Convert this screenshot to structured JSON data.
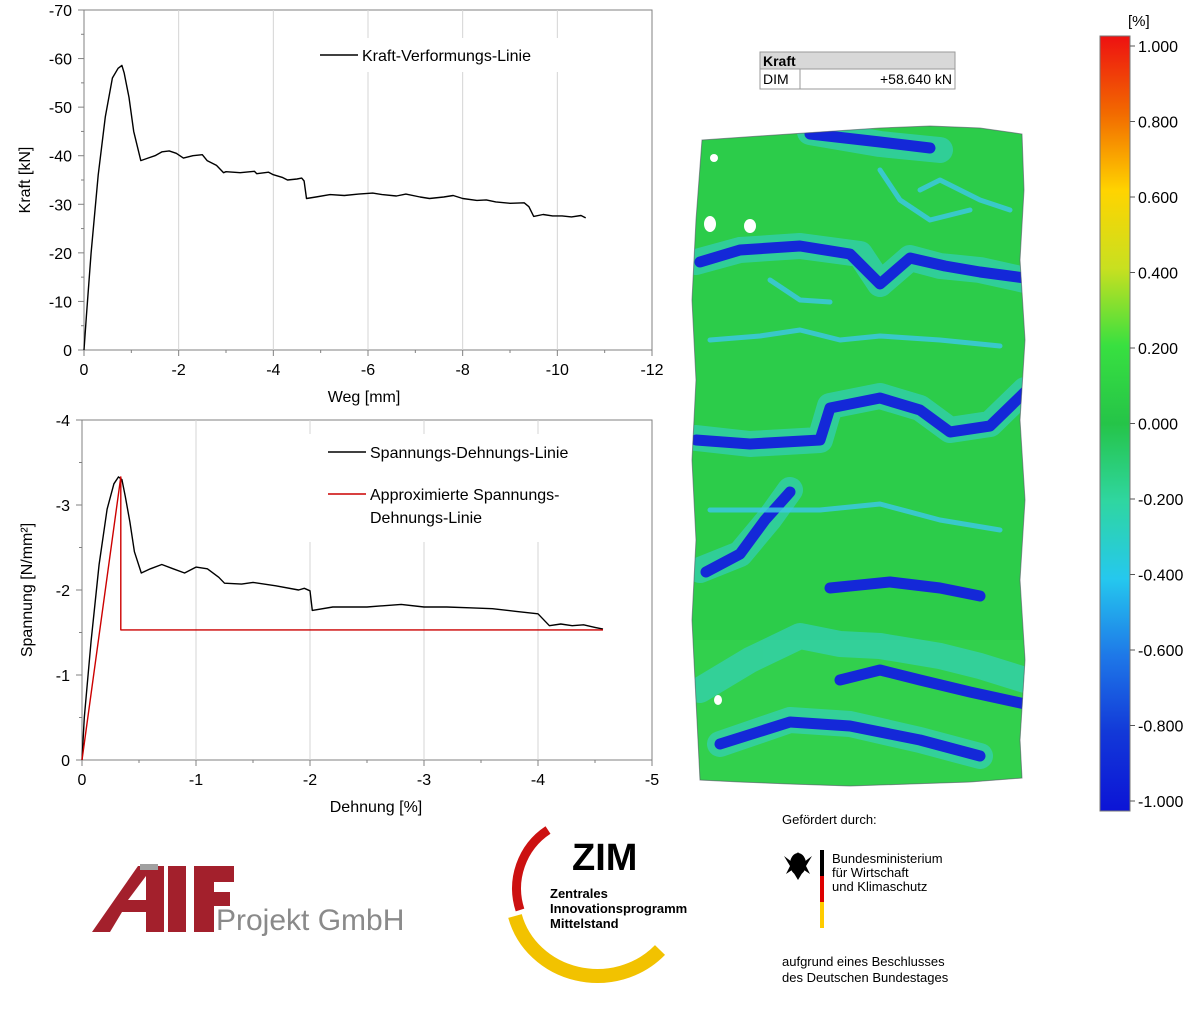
{
  "chart_data": [
    {
      "type": "line",
      "title": "",
      "xlabel": "Weg [mm]",
      "ylabel": "Kraft  [kN]",
      "xlim": [
        0,
        -12
      ],
      "ylim": [
        0,
        -70
      ],
      "xticks": [
        0,
        -2,
        -4,
        -6,
        -8,
        -10,
        -12
      ],
      "yticks": [
        0,
        -10,
        -20,
        -30,
        -40,
        -50,
        -60,
        -70
      ],
      "xtick_labels": [
        "0",
        "-2",
        "-4",
        "-6",
        "-8",
        "-10",
        "-12"
      ],
      "ytick_labels": [
        "0",
        "-10",
        "-20",
        "-30",
        "-40",
        "-50",
        "-60",
        "-70"
      ],
      "grid": "vertical major",
      "legend": "top-right",
      "series": [
        {
          "name": "Kraft-Verformungs-Linie",
          "color": "#000000",
          "x": [
            0,
            -0.05,
            -0.15,
            -0.3,
            -0.45,
            -0.6,
            -0.72,
            -0.8,
            -0.85,
            -0.95,
            -1.05,
            -1.2,
            -1.35,
            -1.5,
            -1.65,
            -1.8,
            -1.95,
            -2.1,
            -2.3,
            -2.5,
            -2.6,
            -2.8,
            -2.95,
            -3.0,
            -3.3,
            -3.6,
            -3.65,
            -3.9,
            -4.0,
            -4.2,
            -4.3,
            -4.5,
            -4.6,
            -4.65,
            -4.7,
            -4.9,
            -5.2,
            -5.5,
            -5.8,
            -6.1,
            -6.3,
            -6.6,
            -6.8,
            -7.1,
            -7.3,
            -7.6,
            -7.8,
            -8.0,
            -8.3,
            -8.5,
            -8.7,
            -9.0,
            -9.3,
            -9.4,
            -9.5,
            -9.7,
            -9.9,
            -10.1,
            -10.3,
            -10.5,
            -10.6
          ],
          "y": [
            0,
            -7,
            -20,
            -36,
            -48,
            -56,
            -58,
            -58.6,
            -57,
            -52,
            -45,
            -39,
            -39.5,
            -40,
            -40.8,
            -41,
            -40.5,
            -39.5,
            -40,
            -40.2,
            -39,
            -38,
            -36.5,
            -36.7,
            -36.5,
            -36.8,
            -36.3,
            -36.6,
            -36.1,
            -35.5,
            -35,
            -35.2,
            -35.4,
            -34.8,
            -31.2,
            -31.5,
            -32,
            -31.8,
            -32.1,
            -32.3,
            -32,
            -31.7,
            -32.1,
            -31.5,
            -31.2,
            -31.5,
            -31.8,
            -31.2,
            -30.8,
            -30.9,
            -30.5,
            -30.2,
            -30.3,
            -29.5,
            -27.5,
            -27.9,
            -27.6,
            -27.6,
            -27.4,
            -27.7,
            -27.2
          ]
        }
      ]
    },
    {
      "type": "line",
      "title": "",
      "xlabel": "Dehnung [%]",
      "ylabel": "Spannung  [N/mm²]",
      "xlim": [
        0,
        -5
      ],
      "ylim": [
        0,
        -4
      ],
      "xticks": [
        0,
        -1,
        -2,
        -3,
        -4,
        -5
      ],
      "yticks": [
        0,
        -1,
        -2,
        -3,
        -4
      ],
      "xtick_labels": [
        "0",
        "-1",
        "-2",
        "-3",
        "-4",
        "-5"
      ],
      "ytick_labels": [
        "0",
        "-1",
        "-2",
        "-3",
        "-4"
      ],
      "grid": "vertical major",
      "legend": "top-right",
      "series": [
        {
          "name": "Spannungs-Dehnungs-Linie",
          "color": "#000000",
          "x": [
            0,
            -0.02,
            -0.08,
            -0.15,
            -0.22,
            -0.28,
            -0.32,
            -0.35,
            -0.38,
            -0.42,
            -0.46,
            -0.52,
            -0.6,
            -0.7,
            -0.8,
            -0.9,
            -1.0,
            -1.1,
            -1.2,
            -1.25,
            -1.4,
            -1.5,
            -1.7,
            -1.9,
            -1.95,
            -2.0,
            -2.02,
            -2.2,
            -2.5,
            -2.8,
            -3.0,
            -3.2,
            -3.4,
            -3.6,
            -3.8,
            -4.0,
            -4.1,
            -4.2,
            -4.3,
            -4.4,
            -4.5,
            -4.57
          ],
          "y": [
            0,
            -0.5,
            -1.4,
            -2.3,
            -2.95,
            -3.25,
            -3.33,
            -3.3,
            -3.1,
            -2.8,
            -2.45,
            -2.2,
            -2.25,
            -2.3,
            -2.25,
            -2.2,
            -2.27,
            -2.25,
            -2.15,
            -2.08,
            -2.07,
            -2.09,
            -2.05,
            -2.0,
            -2.02,
            -1.99,
            -1.76,
            -1.8,
            -1.8,
            -1.83,
            -1.8,
            -1.8,
            -1.79,
            -1.78,
            -1.75,
            -1.72,
            -1.58,
            -1.6,
            -1.58,
            -1.59,
            -1.56,
            -1.54
          ]
        },
        {
          "name": "Approximierte Spannungs-Dehnungs-Linie",
          "color": "#cc0000",
          "x": [
            0,
            -0.34,
            -0.34,
            -4.57
          ],
          "y": [
            0,
            -3.33,
            -1.53,
            -1.53
          ]
        }
      ]
    }
  ],
  "legend_lines": {
    "approx_line_1": "Approximierte Spannungs-",
    "approx_line_2": "Dehnungs-Linie"
  },
  "dic_view": {
    "force_label": "Kraft",
    "row_label": "DIM",
    "row_value": "+58.640 kN"
  },
  "color_scale": {
    "unit": "[%]",
    "labels": [
      "1.000",
      "0.800",
      "0.600",
      "0.400",
      "0.200",
      "0.000",
      "-0.200",
      "-0.400",
      "-0.600",
      "-0.800",
      "-1.000"
    ],
    "colors": [
      "#ee1111",
      "#f26a00",
      "#ffd400",
      "#c8e020",
      "#38e040",
      "#25c448",
      "#2fd6a0",
      "#25c8ee",
      "#1e78e8",
      "#1238d8",
      "#0c14d6"
    ]
  },
  "logos": {
    "aif_text": "Projekt GmbH",
    "zim_title": "ZIM",
    "zim_line1": "Zentrales",
    "zim_line2": "Innovationsprogramm",
    "zim_line3": "Mittelstand",
    "funded_by": "Gefördert durch:",
    "ministry_line1": "Bundesministerium",
    "ministry_line2": "für Wirtschaft",
    "ministry_line3": "und Klimaschutz",
    "bundestag_line1": "aufgrund eines Beschlusses",
    "bundestag_line2": "des Deutschen Bundestages"
  }
}
